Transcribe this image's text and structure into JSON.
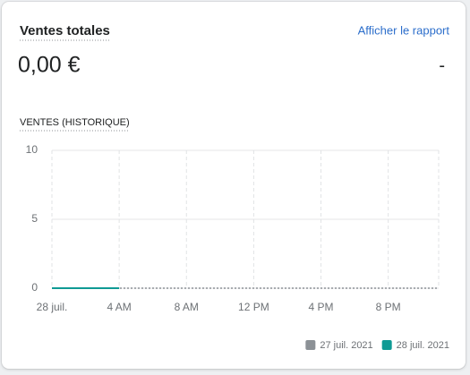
{
  "header": {
    "title": "Ventes totales",
    "link": "Afficher le rapport",
    "total": "0,00 €",
    "change": "-"
  },
  "chart_data": {
    "type": "line",
    "title": "VENTES (HISTORIQUE)",
    "xlim": [
      0,
      23
    ],
    "xticks": [
      {
        "value": 0,
        "label": "28 juil."
      },
      {
        "value": 4,
        "label": "4 AM"
      },
      {
        "value": 8,
        "label": "8 AM"
      },
      {
        "value": 12,
        "label": "12 PM"
      },
      {
        "value": 16,
        "label": "4 PM"
      },
      {
        "value": 20,
        "label": "8 PM"
      }
    ],
    "ylim": [
      0,
      10
    ],
    "yticks": [
      0,
      5,
      10
    ],
    "grid": true,
    "legend": "bottom-right",
    "series": [
      {
        "name": "27 juil. 2021",
        "color": "#8c9196",
        "style": "dashed",
        "x": [
          0,
          1,
          2,
          3,
          4,
          5,
          6,
          7,
          8,
          9,
          10,
          11,
          12,
          13,
          14,
          15,
          16,
          17,
          18,
          19,
          20,
          21,
          22,
          23
        ],
        "values": [
          0,
          0,
          0,
          0,
          0,
          0,
          0,
          0,
          0,
          0,
          0,
          0,
          0,
          0,
          0,
          0,
          0,
          0,
          0,
          0,
          0,
          0,
          0,
          0
        ]
      },
      {
        "name": "28 juil. 2021",
        "color": "#0f9a94",
        "style": "solid",
        "x": [
          0,
          1,
          2,
          3,
          4
        ],
        "values": [
          0,
          0,
          0,
          0,
          0
        ]
      }
    ]
  }
}
